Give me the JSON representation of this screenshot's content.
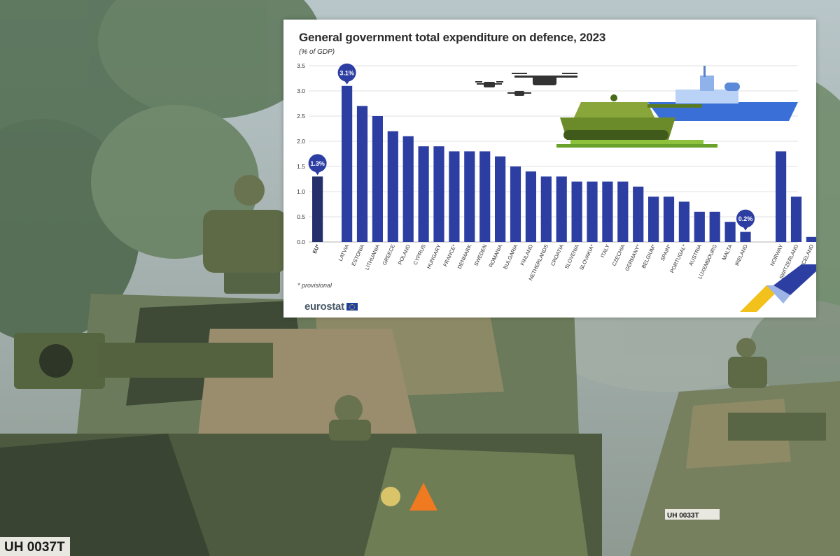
{
  "page": {
    "footnote": "* provisional",
    "brand": "eurostat",
    "vehicle_plate_left": "UH 0037T",
    "vehicle_plate_right": "UH 0033T"
  },
  "colors": {
    "bar": "#2d3ea3",
    "bar_eu": "#25306b",
    "grid": "#d9d9d9",
    "text": "#2b2b2b",
    "accent_yellow": "#f2c11c"
  },
  "icons": [
    "eu-flag-icon",
    "tank-icon",
    "warship-icon",
    "drone-icon"
  ],
  "chart_data": {
    "type": "bar",
    "title": "General government total expenditure on defence, 2023",
    "unit_label": "(% of GDP)",
    "ylim": [
      0,
      3.5
    ],
    "yticks": [
      "0.0",
      "0.5",
      "1.0",
      "1.5",
      "2.0",
      "2.5",
      "3.0",
      "3.5"
    ],
    "grid": true,
    "categories": [
      "EU*",
      "LATVIA",
      "ESTONIA",
      "LITHUANIA",
      "GREECE",
      "POLAND",
      "CYPRUS",
      "HUNGARY",
      "FRANCE*",
      "DENMARK",
      "SWEDEN",
      "ROMANIA",
      "BULGARIA",
      "FINLAND",
      "NETHERLANDS",
      "CROATIA",
      "SLOVENIA",
      "SLOVAKIA*",
      "ITALY",
      "CZECHIA",
      "GERMANY*",
      "BELGIUM*",
      "SPAIN*",
      "PORTUGAL*",
      "AUSTRIA",
      "LUXEMBOURG",
      "MALTA",
      "IRELAND",
      "NORWAY",
      "SWITZERLAND",
      "ICELAND"
    ],
    "values": [
      1.3,
      3.1,
      2.7,
      2.5,
      2.2,
      2.1,
      1.9,
      1.9,
      1.8,
      1.8,
      1.8,
      1.7,
      1.5,
      1.4,
      1.3,
      1.3,
      1.2,
      1.2,
      1.2,
      1.2,
      1.1,
      0.9,
      0.9,
      0.8,
      0.6,
      0.6,
      0.4,
      0.2,
      1.8,
      0.9,
      0.1
    ],
    "groups": [
      "eu",
      "member",
      "member",
      "member",
      "member",
      "member",
      "member",
      "member",
      "member",
      "member",
      "member",
      "member",
      "member",
      "member",
      "member",
      "member",
      "member",
      "member",
      "member",
      "member",
      "member",
      "member",
      "member",
      "member",
      "member",
      "member",
      "member",
      "member",
      "efta",
      "efta",
      "efta"
    ],
    "callouts": [
      {
        "category": "EU*",
        "label": "1.3%"
      },
      {
        "category": "LATVIA",
        "label": "3.1%"
      },
      {
        "category": "IRELAND",
        "label": "0.2%"
      }
    ]
  }
}
